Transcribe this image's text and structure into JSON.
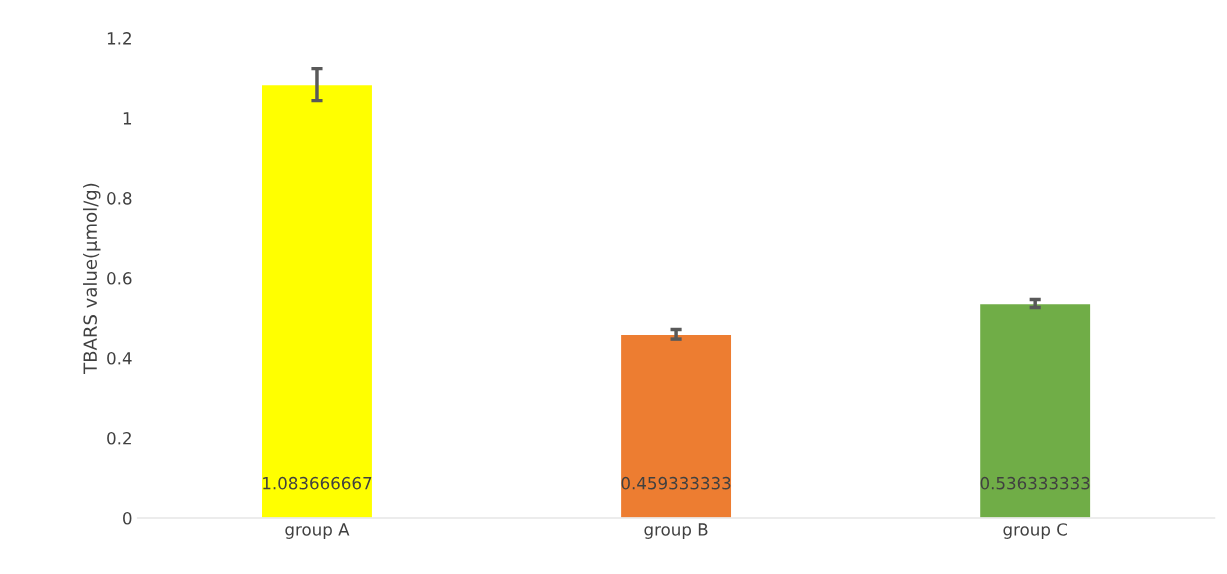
{
  "chart_data": {
    "type": "bar",
    "ylabel": "TBARS value(μmol/g)",
    "categories": [
      "group A",
      "group B",
      "group C"
    ],
    "values": [
      1.083666667,
      0.459333333,
      0.536333333
    ],
    "colors": [
      "#ffff00",
      "#ed7d31",
      "#70ad47"
    ],
    "errors": [
      0.04,
      0.012,
      0.01
    ],
    "ylim": [
      0,
      1.2
    ],
    "yticks": [
      0,
      0.2,
      0.4,
      0.6,
      0.8,
      1,
      1.2
    ],
    "data_labels": true,
    "grid": false,
    "legend": false
  }
}
